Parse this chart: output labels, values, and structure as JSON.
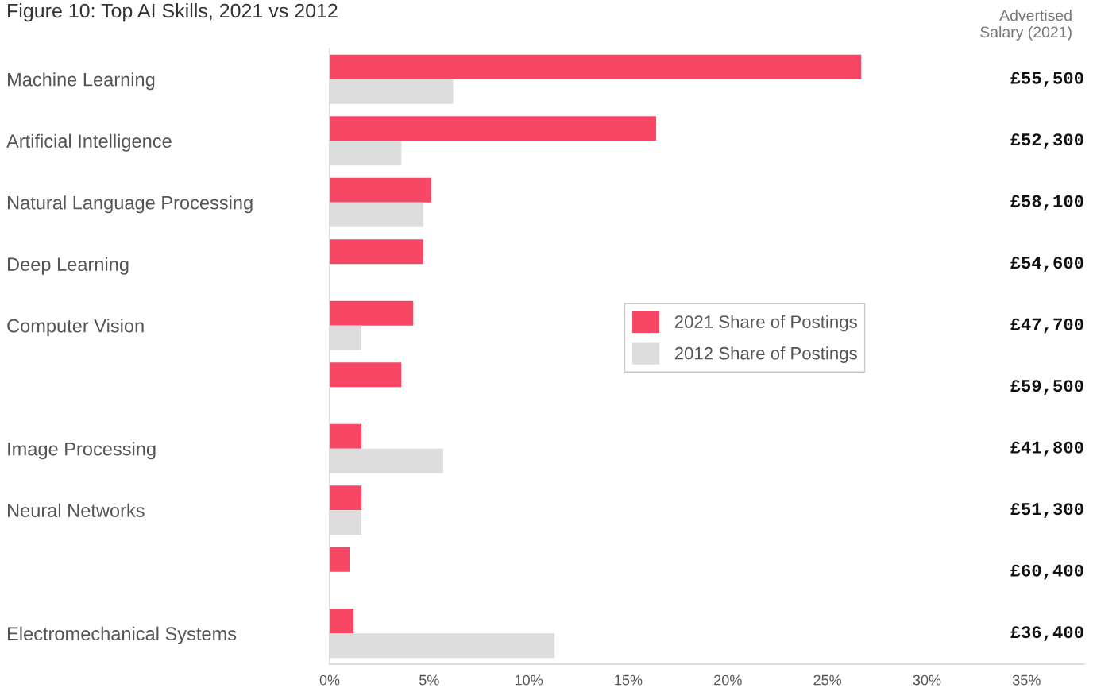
{
  "chart_data": {
    "type": "bar",
    "orientation": "horizontal",
    "title": "Figure 10: Top AI Skills, 2021 vs 2012",
    "categories": [
      "Machine Learning",
      "Artificial Intelligence",
      "Natural Language Processing",
      "Deep Learning",
      "Computer Vision",
      null,
      "Image Processing",
      "Neural Networks",
      null,
      "Electromechanical Systems"
    ],
    "series": [
      {
        "name": "2021 Share of Postings",
        "color": "#f74764",
        "values": [
          26.7,
          16.4,
          5.1,
          4.7,
          4.2,
          3.6,
          1.6,
          1.6,
          1.0,
          1.2
        ]
      },
      {
        "name": "2012 Share of Postings",
        "color": "#dddddd",
        "values": [
          6.2,
          3.6,
          4.7,
          null,
          1.6,
          null,
          5.7,
          1.6,
          null,
          11.3
        ]
      }
    ],
    "xlim": [
      0,
      37.9
    ],
    "xticks": [
      {
        "value": 0,
        "label": "0%"
      },
      {
        "value": 5,
        "label": "5%"
      },
      {
        "value": 10,
        "label": "10%"
      },
      {
        "value": 15,
        "label": "15%"
      },
      {
        "value": 20,
        "label": "20%"
      },
      {
        "value": 25,
        "label": "25%"
      },
      {
        "value": 30,
        "label": "30%"
      },
      {
        "value": 35,
        "label": "35%"
      }
    ],
    "annotations": [
      "Advertised\nSalary (2021)",
      "£55,500",
      "£52,300",
      "£58,100",
      "£54,600",
      "£47,700",
      "£59,500",
      "£41,800",
      "£51,300",
      "£60,400",
      "£36,400"
    ],
    "legend": "center",
    "grid": false
  }
}
